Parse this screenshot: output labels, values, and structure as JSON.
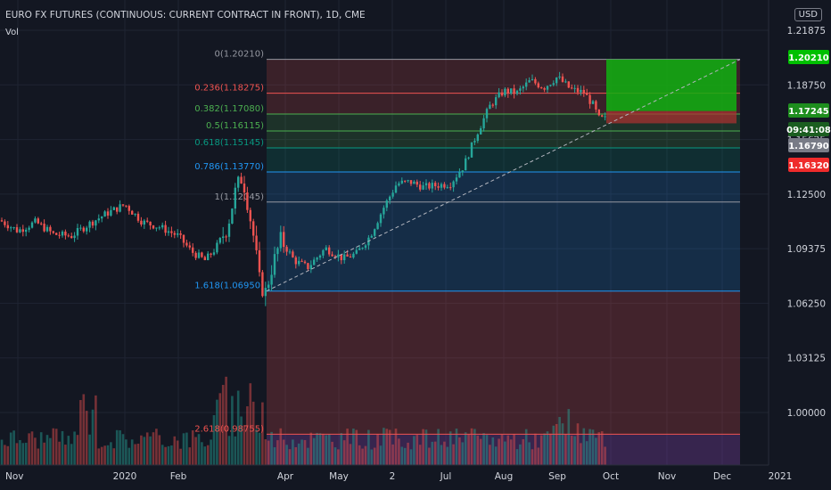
{
  "header": {
    "title": "EURO FX FUTURES (CONTINUOUS: CURRENT CONTRACT IN FRONT), 1D, CME",
    "indicator": "Vol",
    "currency": "USD"
  },
  "colors": {
    "background": "#131722",
    "up": "#26a69a",
    "down": "#ef5350",
    "fib_red": "#ef5350",
    "fib_green": "#4caf50",
    "fib_blue": "#2196f3",
    "fib_gray": "#9598a1",
    "target_green": "#00c000",
    "countdown_bg": "#26a69a",
    "last_price_bg": "#787b86"
  },
  "chart_data": {
    "type": "candlestick",
    "x_axis": {
      "labels": [
        "Nov",
        "2020",
        "Feb",
        "Apr",
        "May",
        "2",
        "Jul",
        "Aug",
        "Sep",
        "Oct",
        "Nov",
        "Dec",
        "2021"
      ]
    },
    "y_axis": {
      "ticks": [
        "1.21875",
        "1.18750",
        "1.15625",
        "1.12500",
        "1.09375",
        "1.06250",
        "1.03125",
        "1.00000"
      ],
      "range": [
        0.975,
        1.225
      ]
    },
    "price_series": {
      "name": "",
      "x": [
        0,
        20,
        40,
        60,
        80,
        100,
        120,
        140,
        160,
        180,
        200,
        215,
        230,
        242,
        255,
        265,
        272,
        278,
        285,
        292,
        298,
        305,
        315,
        330,
        345,
        365,
        385,
        400,
        415,
        430,
        445,
        460,
        475,
        490,
        505,
        520,
        535,
        550,
        565,
        580,
        595,
        610,
        625,
        640,
        655,
        665,
        672,
        680
      ],
      "y": [
        1.11,
        1.104,
        1.109,
        1.102,
        1.101,
        1.108,
        1.114,
        1.119,
        1.109,
        1.106,
        1.101,
        1.092,
        1.087,
        1.094,
        1.106,
        1.129,
        1.135,
        1.119,
        1.099,
        1.072,
        1.069,
        1.083,
        1.099,
        1.087,
        1.083,
        1.094,
        1.088,
        1.091,
        1.101,
        1.117,
        1.131,
        1.132,
        1.129,
        1.13,
        1.131,
        1.141,
        1.16,
        1.176,
        1.184,
        1.183,
        1.19,
        1.186,
        1.192,
        1.185,
        1.183,
        1.176,
        1.168,
        1.168
      ]
    },
    "fibonacci": [
      {
        "label": "0(1.20210)",
        "price": 1.2021,
        "color": "#9598a1"
      },
      {
        "label": "0.236(1.18275)",
        "price": 1.18275,
        "color": "#ef5350"
      },
      {
        "label": "0.382(1.17080)",
        "price": 1.1708,
        "color": "#4caf50"
      },
      {
        "label": "0.5(1.16115)",
        "price": 1.16115,
        "color": "#4caf50"
      },
      {
        "label": "0.618(1.15145)",
        "price": 1.15145,
        "color": "#089981"
      },
      {
        "label": "0.786(1.13770)",
        "price": 1.1377,
        "color": "#2196f3"
      },
      {
        "label": "1(1.12045)",
        "price": 1.12045,
        "color": "#9598a1"
      },
      {
        "label": "1.618(1.06950)",
        "price": 1.0695,
        "color": "#2196f3"
      },
      {
        "label": "2.618(0.98755)",
        "price": 0.98755,
        "color": "#ef5350"
      }
    ],
    "price_labels": [
      {
        "text": "1.20210",
        "price": 1.2021,
        "bg": "#00c000",
        "fg": "#ffffff"
      },
      {
        "text": "1.17245",
        "price": 1.17245,
        "bg": "#1e8e1e",
        "fg": "#ffffff"
      },
      {
        "text": "09:41:08",
        "price": 1.17,
        "bg": "#1b5e20",
        "fg": "#ffffff"
      },
      {
        "text": "1.16790",
        "price": 1.1679,
        "bg": "#787b86",
        "fg": "#ffffff"
      },
      {
        "text": "1.16320",
        "price": 1.1632,
        "bg": "#ef2b2b",
        "fg": "#ffffff"
      }
    ],
    "volume_profile": "relative daily volume bars, highest near early March and mid September"
  }
}
